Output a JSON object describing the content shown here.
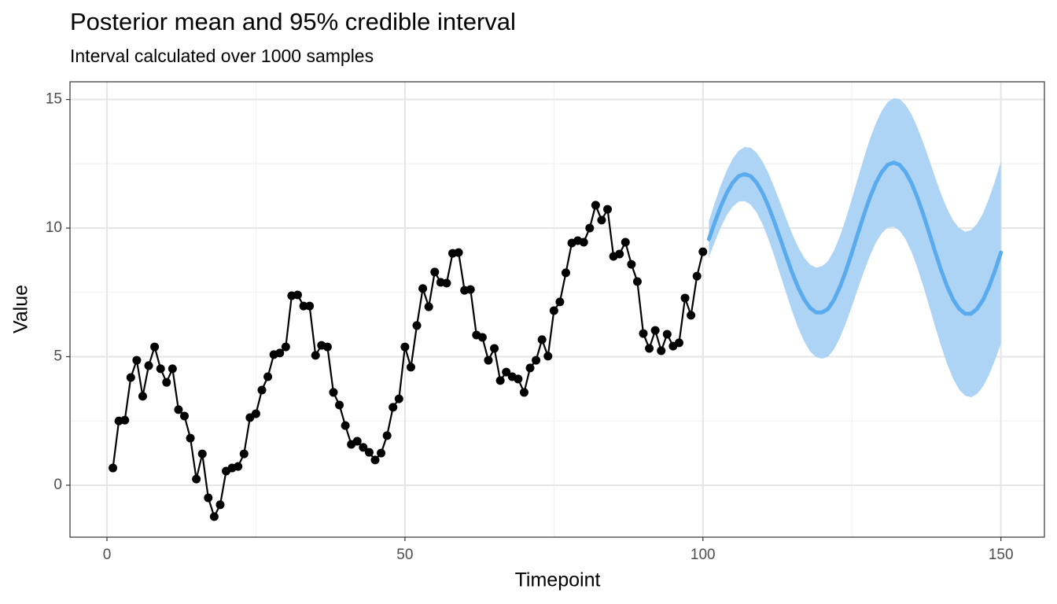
{
  "chart_data": {
    "type": "line",
    "title": "Posterior mean and 95% credible interval",
    "subtitle": "Interval calculated over 1000 samples",
    "x_label": "Timepoint",
    "y_label": "Value",
    "xlim": [
      -6.2,
      157.3
    ],
    "ylim": [
      -2.02,
      15.69
    ],
    "xticks": [
      0,
      50,
      100,
      150
    ],
    "yticks": [
      0,
      5,
      10,
      15
    ],
    "minor_xticks": [
      25,
      75,
      125
    ],
    "minor_yticks": [
      2.5,
      7.5,
      12.5
    ],
    "grid": true,
    "band": {
      "color": "#aed4f5",
      "x": [
        101,
        102,
        103,
        104,
        105,
        106,
        107,
        108,
        109,
        110,
        111,
        112,
        113,
        114,
        115,
        116,
        117,
        118,
        119,
        120,
        121,
        122,
        123,
        124,
        125,
        126,
        127,
        128,
        129,
        130,
        131,
        132,
        133,
        134,
        135,
        136,
        137,
        138,
        139,
        140,
        141,
        142,
        143,
        144,
        145,
        146,
        147,
        148,
        149,
        150
      ],
      "upper": [
        10.27,
        10.99,
        11.67,
        12.24,
        12.7,
        13.01,
        13.15,
        13.13,
        12.93,
        12.59,
        12.13,
        11.57,
        10.97,
        10.35,
        9.76,
        9.25,
        8.85,
        8.58,
        8.46,
        8.52,
        8.72,
        9.13,
        9.7,
        10.37,
        11.14,
        11.94,
        12.72,
        13.45,
        14.07,
        14.56,
        14.9,
        15.05,
        15.02,
        14.79,
        14.42,
        13.91,
        13.3,
        12.64,
        11.95,
        11.3,
        10.74,
        10.29,
        10.0,
        9.86,
        9.92,
        10.17,
        10.58,
        11.15,
        11.82,
        12.59
      ],
      "lower": [
        8.87,
        9.47,
        10.03,
        10.5,
        10.84,
        11.03,
        11.05,
        10.91,
        10.61,
        10.15,
        9.57,
        8.89,
        8.17,
        7.45,
        6.74,
        6.11,
        5.59,
        5.2,
        4.98,
        4.92,
        5.0,
        5.29,
        5.74,
        6.31,
        6.96,
        7.64,
        8.3,
        8.91,
        9.43,
        9.8,
        10.02,
        10.05,
        9.9,
        9.57,
        9.08,
        8.45,
        7.72,
        6.94,
        6.15,
        5.38,
        4.7,
        4.13,
        3.72,
        3.48,
        3.42,
        3.55,
        3.84,
        4.29,
        4.86,
        5.51
      ]
    },
    "series": [
      {
        "color": "#000000",
        "markers": true,
        "x": [
          1,
          2,
          3,
          4,
          5,
          6,
          7,
          8,
          9,
          10,
          11,
          12,
          13,
          14,
          15,
          16,
          17,
          18,
          19,
          20,
          21,
          22,
          23,
          24,
          25,
          26,
          27,
          28,
          29,
          30,
          31,
          32,
          33,
          34,
          35,
          36,
          37,
          38,
          39,
          40,
          41,
          42,
          43,
          44,
          45,
          46,
          47,
          48,
          49,
          50,
          51,
          52,
          53,
          54,
          55,
          56,
          57,
          58,
          59,
          60,
          61,
          62,
          63,
          64,
          65,
          66,
          67,
          68,
          69,
          70,
          71,
          72,
          73,
          74,
          75,
          76,
          77,
          78,
          79,
          80,
          81,
          82,
          83,
          84,
          85,
          86,
          87,
          88,
          89,
          90,
          91,
          92,
          93,
          94,
          95,
          96,
          97,
          98,
          99,
          100
        ],
        "values": [
          0.67,
          2.5,
          2.53,
          4.19,
          4.86,
          3.46,
          4.65,
          5.38,
          4.53,
          4.0,
          4.53,
          2.94,
          2.69,
          1.83,
          0.24,
          1.22,
          -0.49,
          -1.22,
          -0.76,
          0.55,
          0.67,
          0.73,
          1.22,
          2.63,
          2.78,
          3.7,
          4.22,
          5.08,
          5.14,
          5.38,
          7.37,
          7.4,
          6.97,
          6.97,
          5.05,
          5.44,
          5.38,
          3.61,
          3.12,
          2.32,
          1.59,
          1.71,
          1.47,
          1.28,
          0.98,
          1.25,
          1.93,
          3.03,
          3.36,
          5.38,
          4.59,
          6.21,
          7.65,
          6.94,
          8.29,
          7.89,
          7.86,
          9.02,
          9.05,
          7.58,
          7.61,
          5.84,
          5.75,
          4.86,
          5.32,
          4.07,
          4.4,
          4.22,
          4.13,
          3.61,
          4.56,
          4.86,
          5.66,
          5.02,
          6.79,
          7.13,
          8.26,
          9.42,
          9.51,
          9.45,
          10.0,
          10.89,
          10.31,
          10.73,
          8.9,
          8.99,
          9.45,
          8.59,
          7.92,
          5.9,
          5.32,
          6.02,
          5.23,
          5.87,
          5.41,
          5.54,
          7.28,
          6.61,
          8.13,
          9.08
        ]
      },
      {
        "color": "#5aabee",
        "markers": false,
        "x": [
          101,
          102,
          103,
          104,
          105,
          106,
          107,
          108,
          109,
          110,
          111,
          112,
          113,
          114,
          115,
          116,
          117,
          118,
          119,
          120,
          121,
          122,
          123,
          124,
          125,
          126,
          127,
          128,
          129,
          130,
          131,
          132,
          133,
          134,
          135,
          136,
          137,
          138,
          139,
          140,
          141,
          142,
          143,
          144,
          145,
          146,
          147,
          148,
          149,
          150
        ],
        "values": [
          9.57,
          10.23,
          10.85,
          11.37,
          11.77,
          12.02,
          12.1,
          12.02,
          11.77,
          11.37,
          10.85,
          10.23,
          9.57,
          8.9,
          8.25,
          7.68,
          7.22,
          6.89,
          6.72,
          6.72,
          6.86,
          7.21,
          7.72,
          8.34,
          9.05,
          9.79,
          10.51,
          11.18,
          11.75,
          12.18,
          12.46,
          12.55,
          12.46,
          12.18,
          11.75,
          11.18,
          10.51,
          9.79,
          9.05,
          8.34,
          7.72,
          7.21,
          6.86,
          6.67,
          6.67,
          6.86,
          7.21,
          7.72,
          8.34,
          9.05
        ]
      }
    ]
  }
}
